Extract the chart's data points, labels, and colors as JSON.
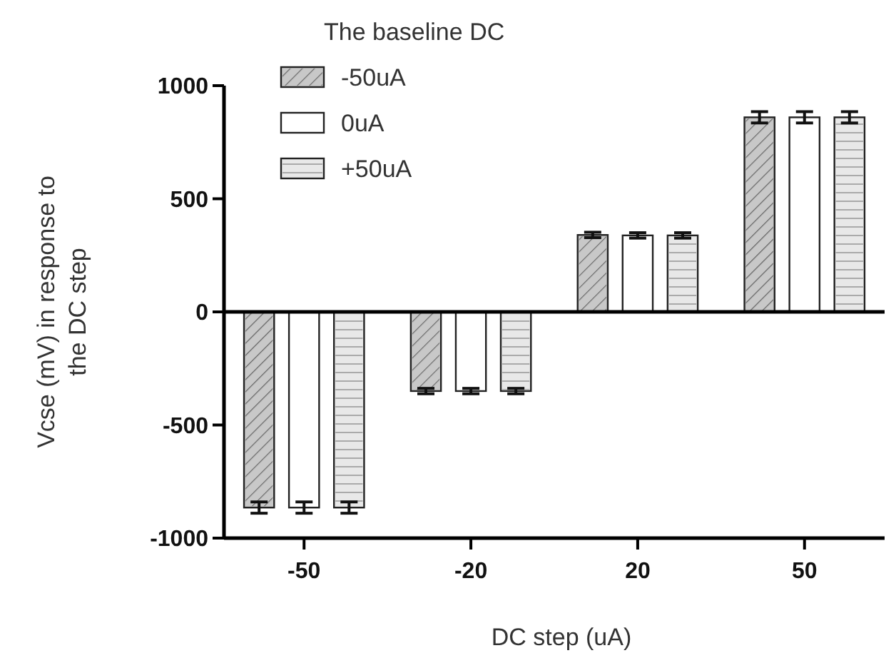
{
  "chart_data": {
    "type": "bar",
    "xlabel": "DC step (uA)",
    "ylabel": "Vcse (mV) in response to\nthe DC step",
    "legend_title": "The baseline DC",
    "categories": [
      "-50",
      "-20",
      "20",
      "50"
    ],
    "series": [
      {
        "name": "-50uA",
        "color": "#c8c8c8",
        "values": [
          -865,
          -350,
          340,
          860
        ],
        "errors": [
          25,
          12,
          12,
          25
        ]
      },
      {
        "name": "0uA",
        "color": "#ffffff",
        "values": [
          -865,
          -350,
          338,
          860
        ],
        "errors": [
          25,
          12,
          12,
          25
        ]
      },
      {
        "name": "+50uA",
        "color": "#e8e8e8",
        "values": [
          -865,
          -350,
          338,
          860
        ],
        "errors": [
          25,
          12,
          12,
          25
        ]
      }
    ],
    "ylim": [
      -1000,
      1000
    ],
    "yticks": [
      -1000,
      -500,
      0,
      500,
      1000
    ],
    "legend": "top left"
  }
}
